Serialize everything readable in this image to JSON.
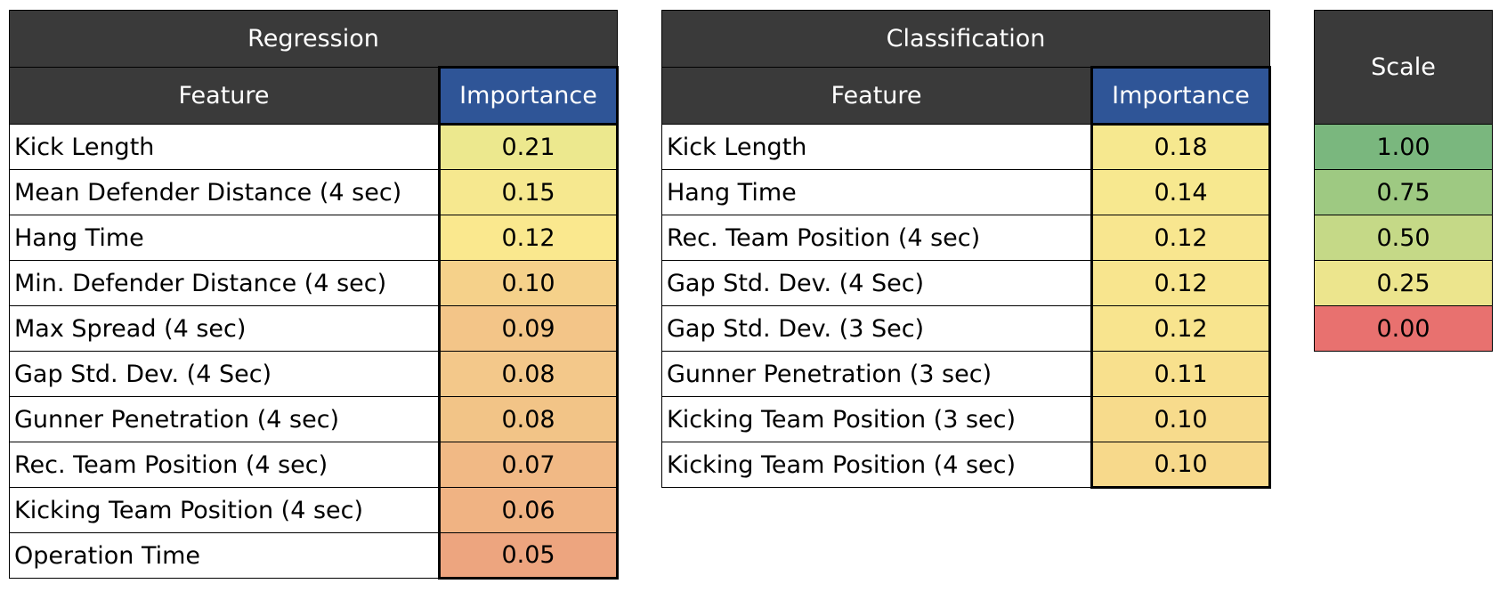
{
  "chart_data": [
    {
      "type": "table",
      "title": "Regression",
      "columns": [
        "Feature",
        "Importance"
      ],
      "rows": [
        {
          "feature": "Kick Length",
          "importance": "0.21",
          "color": "#ece88e"
        },
        {
          "feature": "Mean Defender Distance (4 sec)",
          "importance": "0.15",
          "color": "#f6e88f"
        },
        {
          "feature": "Hang Time",
          "importance": "0.12",
          "color": "#fae88e"
        },
        {
          "feature": "Min. Defender Distance (4 sec)",
          "importance": "0.10",
          "color": "#f5d18a"
        },
        {
          "feature": "Max Spread (4 sec)",
          "importance": "0.09",
          "color": "#f3c588"
        },
        {
          "feature": "Gap Std. Dev. (4 Sec)",
          "importance": "0.08",
          "color": "#f3c88a"
        },
        {
          "feature": "Gunner Penetration (4 sec)",
          "importance": "0.08",
          "color": "#f2c487"
        },
        {
          "feature": "Rec. Team Position (4 sec)",
          "importance": "0.07",
          "color": "#f1b985"
        },
        {
          "feature": "Kicking Team Position (4 sec)",
          "importance": "0.06",
          "color": "#f0b383"
        },
        {
          "feature": "Operation Time",
          "importance": "0.05",
          "color": "#eda57f"
        }
      ]
    },
    {
      "type": "table",
      "title": "Classification",
      "columns": [
        "Feature",
        "Importance"
      ],
      "rows": [
        {
          "feature": "Kick Length",
          "importance": "0.18",
          "color": "#f6e88f"
        },
        {
          "feature": "Hang Time",
          "importance": "0.14",
          "color": "#f7e88f"
        },
        {
          "feature": "Rec. Team Position (4 sec)",
          "importance": "0.12",
          "color": "#f8e68f"
        },
        {
          "feature": "Gap Std. Dev. (4 Sec)",
          "importance": "0.12",
          "color": "#f8e58e"
        },
        {
          "feature": "Gap Std. Dev. (3 Sec)",
          "importance": "0.12",
          "color": "#f8e48e"
        },
        {
          "feature": "Gunner Penetration (3 sec)",
          "importance": "0.11",
          "color": "#f8e08d"
        },
        {
          "feature": "Kicking Team Position (3 sec)",
          "importance": "0.10",
          "color": "#f7db8c"
        },
        {
          "feature": "Kicking Team Position (4 sec)",
          "importance": "0.10",
          "color": "#f7d98b"
        }
      ]
    },
    {
      "type": "table",
      "title": "Scale",
      "rows": [
        {
          "value": "1.00",
          "color": "#7ab77e"
        },
        {
          "value": "0.75",
          "color": "#9ec982"
        },
        {
          "value": "0.50",
          "color": "#c5d987"
        },
        {
          "value": "0.25",
          "color": "#ece58d"
        },
        {
          "value": "0.00",
          "color": "#e8716f"
        }
      ]
    }
  ]
}
